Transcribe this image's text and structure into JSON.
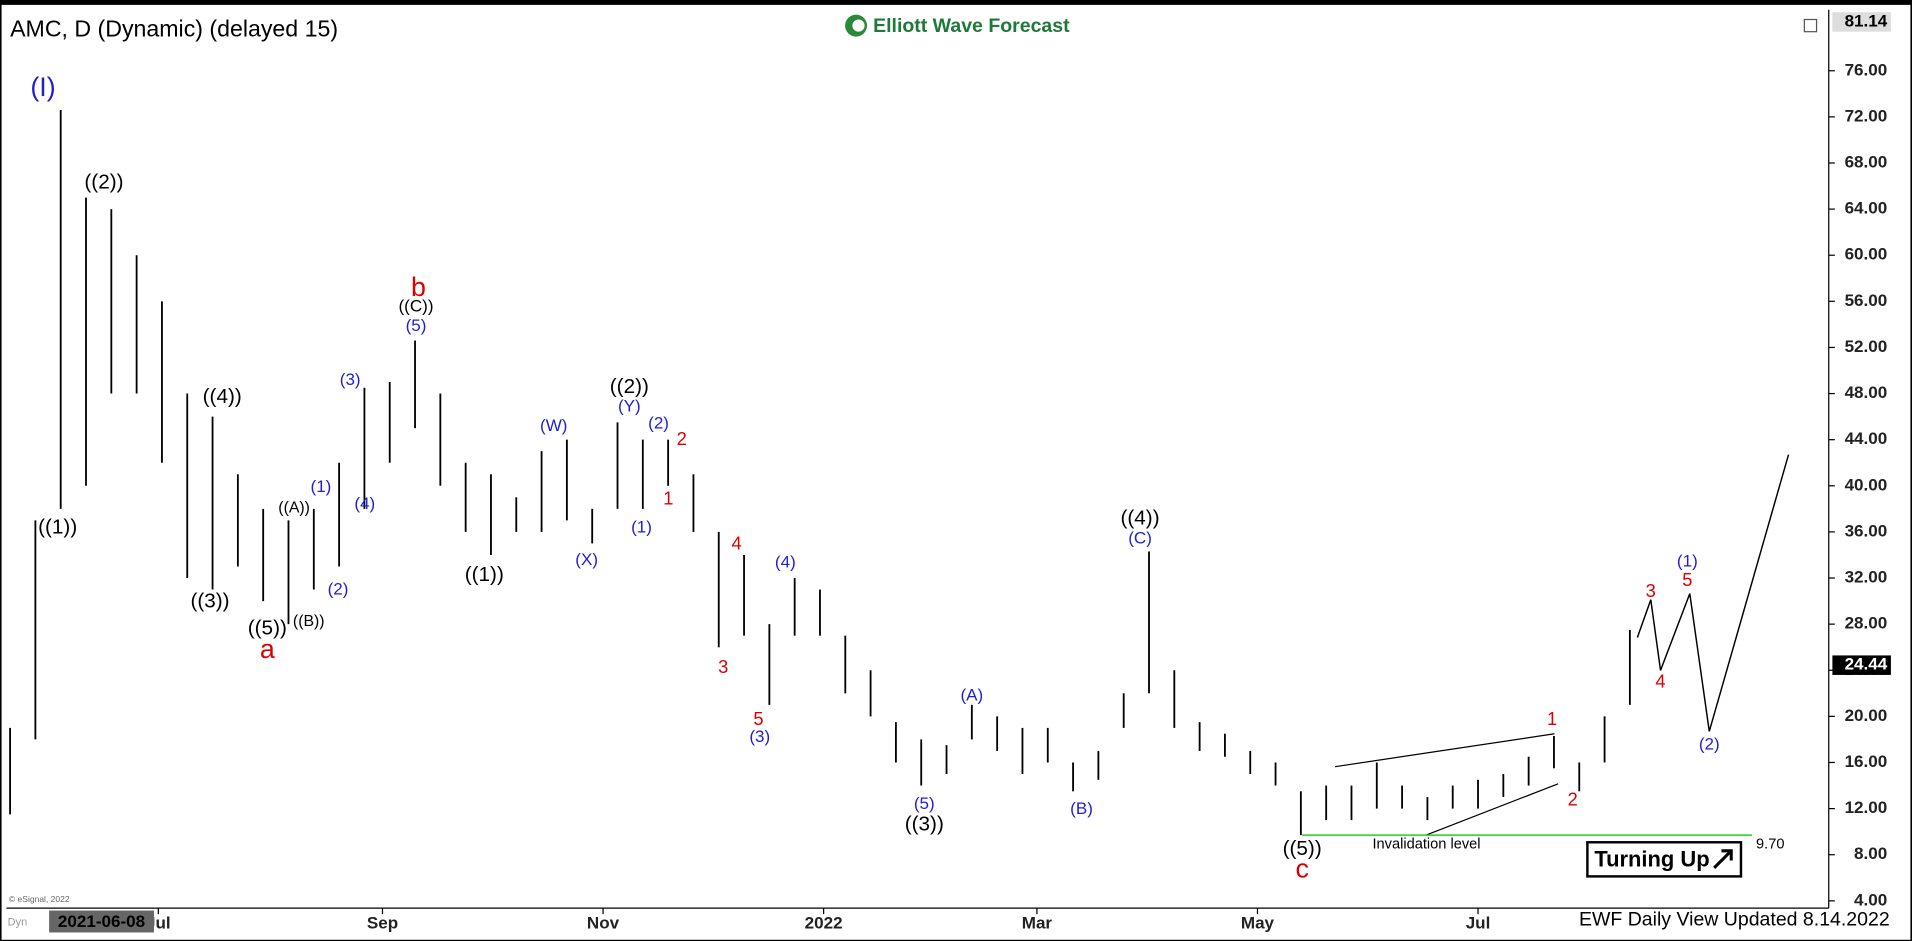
{
  "header": {
    "title": "AMC, D (Dynamic) (delayed 15)",
    "brand": "Elliott Wave Forecast",
    "footer": "EWF Daily View Updated 8.14.2022",
    "copyright": "© eSignal, 2022",
    "badge": "Turning Up",
    "cursor_date": "2021-06-08",
    "mode": "Dyn"
  },
  "chart_data": {
    "type": "ohlc",
    "color": "#000000",
    "x": [
      "2021-05-21",
      "2021-05-28",
      "2021-06-04",
      "2021-06-11",
      "2021-06-18",
      "2021-06-25",
      "2021-07-02",
      "2021-07-09",
      "2021-07-16",
      "2021-07-23",
      "2021-07-30",
      "2021-08-06",
      "2021-08-13",
      "2021-08-20",
      "2021-08-27",
      "2021-09-03",
      "2021-09-10",
      "2021-09-17",
      "2021-09-24",
      "2021-10-01",
      "2021-10-08",
      "2021-10-15",
      "2021-10-22",
      "2021-10-29",
      "2021-11-05",
      "2021-11-12",
      "2021-11-19",
      "2021-11-26",
      "2021-12-03",
      "2021-12-10",
      "2021-12-17",
      "2021-12-24",
      "2021-12-31",
      "2022-01-07",
      "2022-01-14",
      "2022-01-21",
      "2022-01-28",
      "2022-02-04",
      "2022-02-11",
      "2022-02-18",
      "2022-02-25",
      "2022-03-04",
      "2022-03-11",
      "2022-03-18",
      "2022-03-25",
      "2022-04-01",
      "2022-04-08",
      "2022-04-15",
      "2022-04-22",
      "2022-04-29",
      "2022-05-06",
      "2022-05-13",
      "2022-05-20",
      "2022-05-27",
      "2022-06-03",
      "2022-06-10",
      "2022-06-17",
      "2022-06-24",
      "2022-07-01",
      "2022-07-08",
      "2022-07-15",
      "2022-07-22",
      "2022-07-29",
      "2022-08-05",
      "2022-08-12"
    ],
    "highs": [
      19,
      37,
      72.6,
      65,
      64,
      60,
      56,
      48,
      46,
      41,
      38,
      37,
      38,
      42,
      48.5,
      49,
      52.6,
      48,
      42,
      41,
      39,
      43,
      44,
      38,
      45.5,
      44,
      44,
      41,
      36,
      34,
      28,
      32,
      31,
      27,
      24,
      19.5,
      18,
      17.5,
      21,
      20,
      19,
      19,
      16,
      17,
      22,
      34.3,
      24,
      19.5,
      18.5,
      17,
      16,
      13.5,
      14,
      14,
      16,
      14,
      13,
      14,
      14.5,
      15,
      16.5,
      18.3,
      16,
      20,
      27.5
    ],
    "lows": [
      11.5,
      18,
      38,
      40,
      48,
      48,
      42,
      32,
      31,
      33,
      30,
      28,
      31,
      33,
      38,
      42,
      45,
      40,
      36,
      34,
      36,
      36,
      37,
      35,
      38,
      38,
      40,
      36,
      26,
      27,
      21,
      27,
      27,
      22,
      20,
      16,
      14,
      15,
      18,
      17,
      15,
      16,
      13.5,
      14.5,
      19,
      22,
      19,
      17,
      16.5,
      15,
      14,
      9.7,
      11,
      11,
      12,
      12,
      11,
      12,
      12,
      13,
      14,
      15.5,
      13.5,
      16,
      21
    ],
    "xlim": [
      "2021-05-20",
      "2022-10-06"
    ],
    "xticks": [
      {
        "value": "2021-07-01",
        "label": "Jul"
      },
      {
        "value": "2021-09-01",
        "label": "Sep"
      },
      {
        "value": "2021-11-01",
        "label": "Nov"
      },
      {
        "value": "2022-01-01",
        "label": "2022"
      },
      {
        "value": "2022-03-01",
        "label": "Mar"
      },
      {
        "value": "2022-05-01",
        "label": "May"
      },
      {
        "value": "2022-07-01",
        "label": "Jul"
      }
    ],
    "ylim": [
      3.37,
      81.08
    ],
    "yticks": [
      {
        "value": 4,
        "label": "4.00"
      },
      {
        "value": 8,
        "label": "8.00"
      },
      {
        "value": 12,
        "label": "12.00"
      },
      {
        "value": 16,
        "label": "16.00"
      },
      {
        "value": 20,
        "label": "20.00"
      },
      {
        "value": 24,
        "label": "24.00"
      },
      {
        "value": 28,
        "label": "28.00"
      },
      {
        "value": 32,
        "label": "32.00"
      },
      {
        "value": 36,
        "label": "36.00"
      },
      {
        "value": 40,
        "label": "40.00"
      },
      {
        "value": 44,
        "label": "44.00"
      },
      {
        "value": 48,
        "label": "48.00"
      },
      {
        "value": 52,
        "label": "52.00"
      },
      {
        "value": 56,
        "label": "56.00"
      },
      {
        "value": 60,
        "label": "60.00"
      },
      {
        "value": 64,
        "label": "64.00"
      },
      {
        "value": 68,
        "label": "68.00"
      },
      {
        "value": 72,
        "label": "72.00"
      },
      {
        "value": 76,
        "label": "76.00"
      }
    ],
    "price_labels": [
      {
        "value": 81.14,
        "label": "81.14"
      },
      {
        "value": 24.44,
        "label": "24.44"
      }
    ],
    "invalidation": {
      "text": "Invalidation level",
      "value": 9.7,
      "label": "9.70",
      "color": "#22cc22"
    },
    "wave_labels": [
      {
        "text": "(I)",
        "color": "#1f1fd0"
      },
      {
        "text": "((1))",
        "color": "#000000"
      },
      {
        "text": "((2))",
        "color": "#000000"
      },
      {
        "text": "((3))",
        "color": "#000000"
      },
      {
        "text": "((4))",
        "color": "#000000"
      },
      {
        "text": "((5))",
        "color": "#000000"
      },
      {
        "text": "a",
        "color": "#dd0000"
      },
      {
        "text": "((A))",
        "color": "#000000"
      },
      {
        "text": "((B))",
        "color": "#000000"
      },
      {
        "text": "(1)",
        "color": "#1f1fd0"
      },
      {
        "text": "(2)",
        "color": "#1f1fd0"
      },
      {
        "text": "(3)",
        "color": "#1f1fd0"
      },
      {
        "text": "(4)",
        "color": "#1f1fd0"
      },
      {
        "text": "(5)",
        "color": "#1f1fd0"
      },
      {
        "text": "((C))",
        "color": "#000000"
      },
      {
        "text": "b",
        "color": "#dd0000"
      },
      {
        "text": "((1))",
        "color": "#000000"
      },
      {
        "text": "(W)",
        "color": "#1f1fd0"
      },
      {
        "text": "(X)",
        "color": "#1f1fd0"
      },
      {
        "text": "((2))",
        "color": "#000000"
      },
      {
        "text": "(Y)",
        "color": "#1f1fd0"
      },
      {
        "text": "(1)",
        "color": "#1f1fd0"
      },
      {
        "text": "(2)",
        "color": "#1f1fd0"
      },
      {
        "text": "2",
        "color": "#dd0000"
      },
      {
        "text": "1",
        "color": "#dd0000"
      },
      {
        "text": "4",
        "color": "#dd0000"
      },
      {
        "text": "3",
        "color": "#dd0000"
      },
      {
        "text": "(4)",
        "color": "#1f1fd0"
      },
      {
        "text": "5",
        "color": "#dd0000"
      },
      {
        "text": "(3)",
        "color": "#1f1fd0"
      },
      {
        "text": "(A)",
        "color": "#1f1fd0"
      },
      {
        "text": "(5)",
        "color": "#1f1fd0"
      },
      {
        "text": "((3))",
        "color": "#000000"
      },
      {
        "text": "(B)",
        "color": "#1f1fd0"
      },
      {
        "text": "((4))",
        "color": "#000000"
      },
      {
        "text": "(C)",
        "color": "#1f1fd0"
      },
      {
        "text": "((5))",
        "color": "#000000"
      },
      {
        "text": "c",
        "color": "#dd0000"
      },
      {
        "text": "1",
        "color": "#dd0000"
      },
      {
        "text": "2",
        "color": "#dd0000"
      },
      {
        "text": "3",
        "color": "#dd0000"
      },
      {
        "text": "4",
        "color": "#dd0000"
      },
      {
        "text": "5",
        "color": "#dd0000"
      },
      {
        "text": "(1)",
        "color": "#1f1fd0"
      },
      {
        "text": "(2)",
        "color": "#1f1fd0"
      }
    ]
  }
}
